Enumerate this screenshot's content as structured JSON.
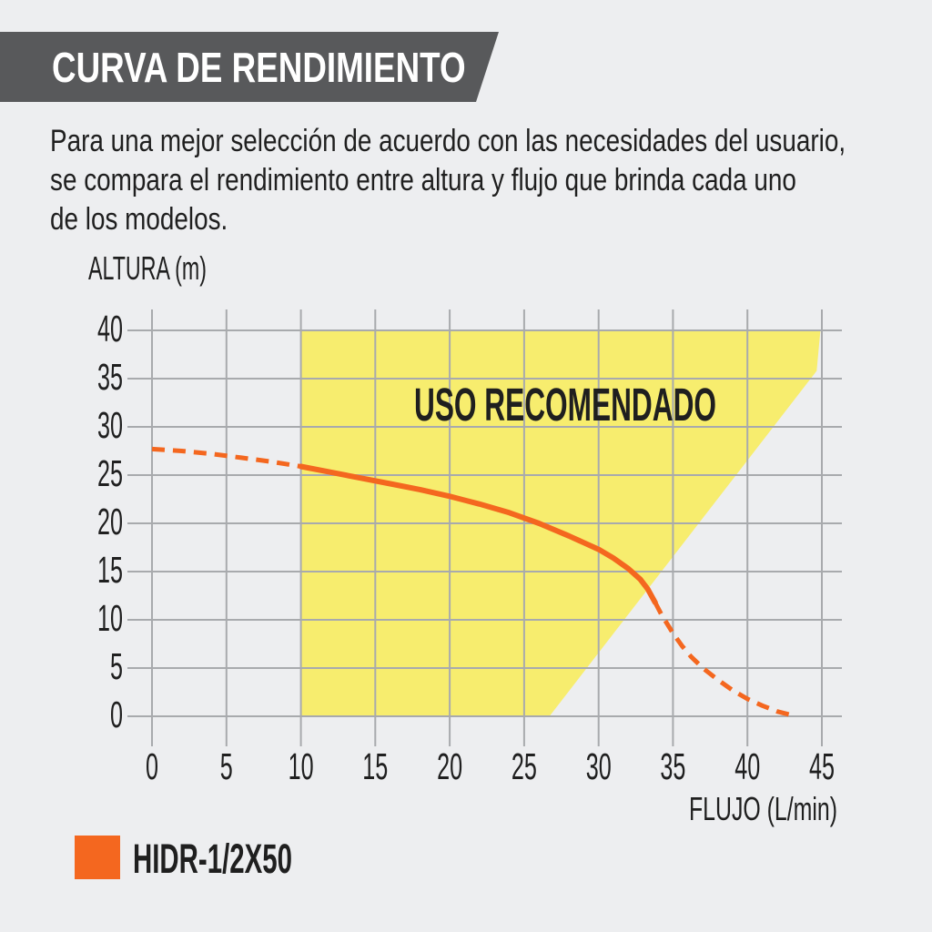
{
  "page": {
    "background": "#EDEEF0",
    "text_color": "#1F1F1F"
  },
  "header": {
    "title": "CURVA DE RENDIMIENTO",
    "background": "#58595B",
    "text_color": "#FFFFFF"
  },
  "intro": {
    "lines": [
      "Para una mejor selección de acuerdo con las necesidades del usuario,",
      "se compara el rendimiento entre altura y flujo que brinda cada uno",
      "de los modelos."
    ]
  },
  "chart_data": {
    "type": "line",
    "xlabel": "FLUJO (L/min)",
    "ylabel": "ALTURA (m)",
    "xlim": [
      0,
      45
    ],
    "ylim": [
      0,
      40
    ],
    "x_ticks": [
      0,
      5,
      10,
      15,
      20,
      25,
      30,
      35,
      40,
      45
    ],
    "y_ticks": [
      0,
      5,
      10,
      15,
      20,
      25,
      30,
      35,
      40
    ],
    "grid": true,
    "grid_color": "#A8AAAD",
    "series": [
      {
        "name": "HIDR-1/2X50",
        "color": "#F4671F",
        "segments": [
          {
            "style": "dashed",
            "points": [
              [
                0,
                27.7
              ],
              [
                2,
                27.5
              ],
              [
                4,
                27.2
              ],
              [
                6,
                26.8
              ],
              [
                8,
                26.4
              ],
              [
                10,
                25.9
              ]
            ]
          },
          {
            "style": "solid",
            "points": [
              [
                10,
                25.9
              ],
              [
                12,
                25.3
              ],
              [
                14,
                24.7
              ],
              [
                16,
                24.1
              ],
              [
                18,
                23.5
              ],
              [
                20,
                22.8
              ],
              [
                22,
                22.0
              ],
              [
                24,
                21.1
              ],
              [
                26,
                20.0
              ],
              [
                28,
                18.7
              ],
              [
                29,
                18.0
              ],
              [
                30,
                17.3
              ],
              [
                31,
                16.4
              ],
              [
                32,
                15.3
              ],
              [
                32.8,
                14.2
              ],
              [
                33.3,
                13.2
              ],
              [
                33.8,
                11.8
              ]
            ]
          },
          {
            "style": "dashed",
            "points": [
              [
                33.8,
                11.8
              ],
              [
                34.2,
                10.6
              ],
              [
                34.6,
                9.6
              ],
              [
                35,
                8.6
              ],
              [
                35.6,
                7.3
              ],
              [
                36.2,
                6.2
              ],
              [
                37,
                5.0
              ],
              [
                38,
                3.8
              ],
              [
                39,
                2.7
              ],
              [
                40,
                1.8
              ],
              [
                41,
                1.1
              ],
              [
                42,
                0.5
              ],
              [
                43,
                0.1
              ]
            ]
          }
        ]
      }
    ],
    "recommended_region": {
      "label": "USO RECOMENDADO",
      "color": "#F7ED6E",
      "polygon": [
        [
          10,
          0
        ],
        [
          10,
          40
        ],
        [
          44.9,
          40
        ],
        [
          44.65,
          35.8
        ],
        [
          26.7,
          0
        ]
      ]
    }
  },
  "legend": {
    "swatch_color": "#F4671F",
    "label": "HIDR-1/2X50"
  }
}
